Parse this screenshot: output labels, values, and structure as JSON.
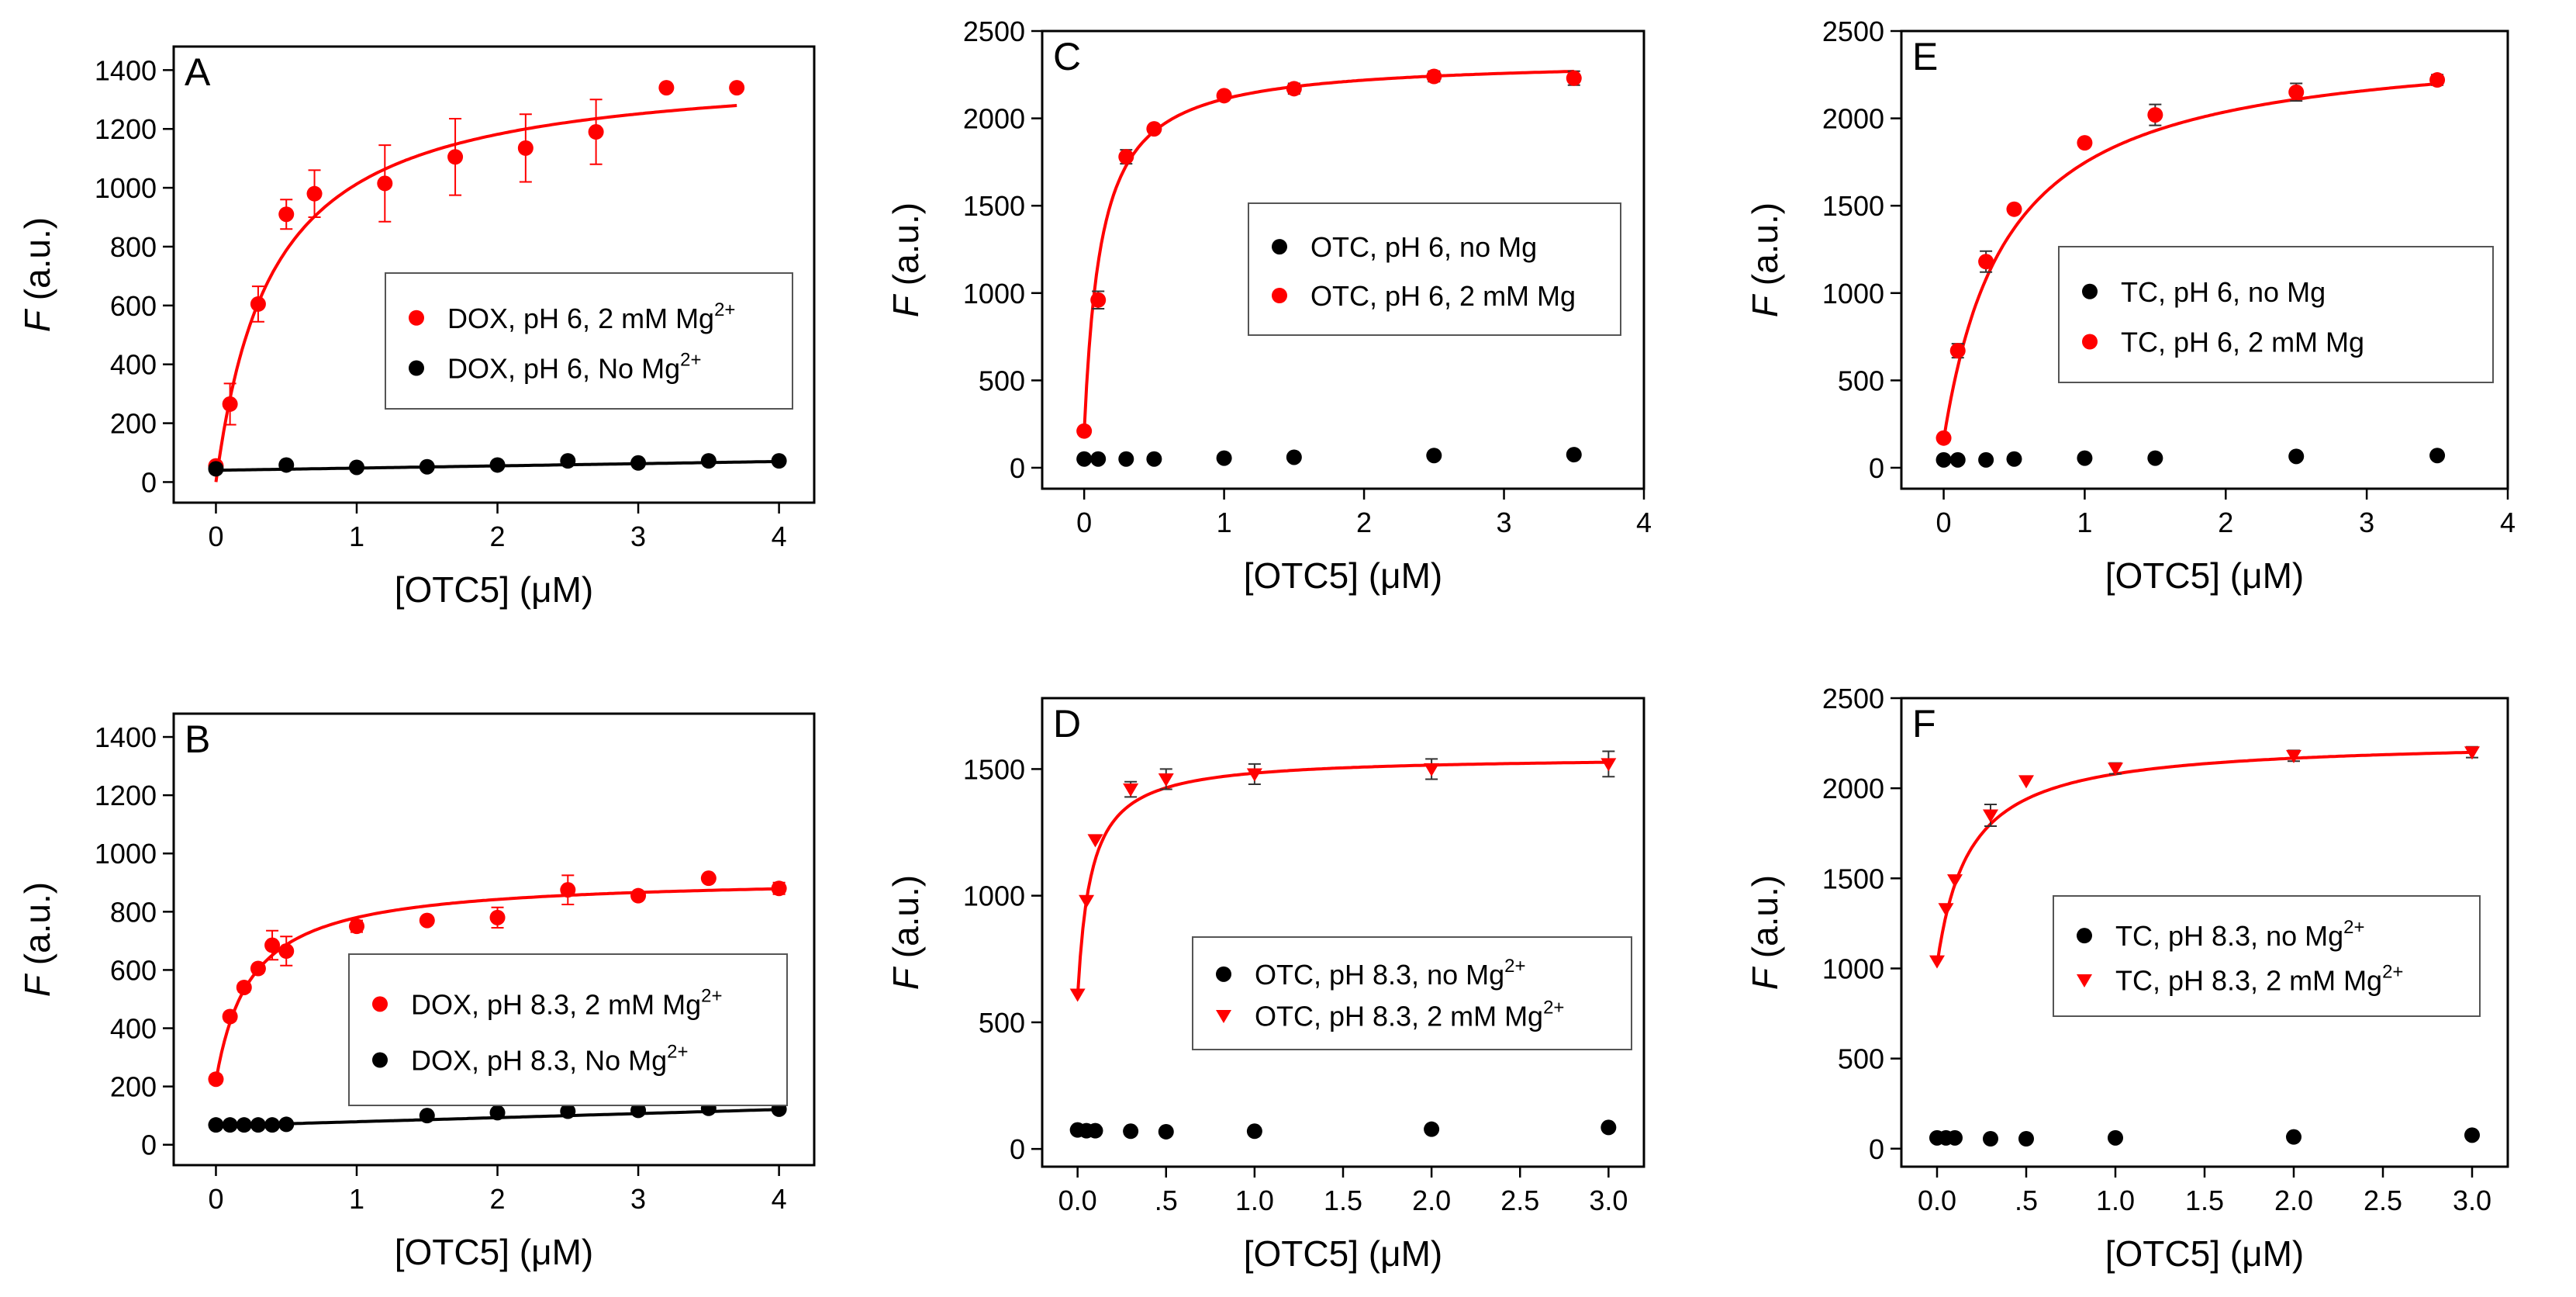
{
  "chart_data": [
    {
      "type": "scatter",
      "panel_label": "A",
      "xlabel": "[OTC5] (μM)",
      "ylabel_italic": "F",
      "ylabel_unit": " (a.u.)",
      "xlim": [
        -0.3,
        4.25
      ],
      "ylim": [
        -70,
        1480
      ],
      "xticks": [
        0,
        1,
        2,
        3,
        4
      ],
      "xtick_labels": [
        "0",
        "1",
        "2",
        "3",
        "4"
      ],
      "yticks": [
        0,
        200,
        400,
        600,
        800,
        1000,
        1200,
        1400
      ],
      "ytick_labels": [
        "0",
        "200",
        "400",
        "600",
        "800",
        "1000",
        "1200",
        "1400"
      ],
      "series": [
        {
          "name": "DOX, pH 6, 2 mM Mg",
          "name_sup": "2+",
          "color": "#ff0000",
          "marker": "circle",
          "x": [
            0,
            0.1,
            0.3,
            0.5,
            0.7,
            1.2,
            1.7,
            2.2,
            2.7,
            3.2,
            3.7
          ],
          "y": [
            55,
            265,
            605,
            910,
            980,
            1015,
            1105,
            1135,
            1190,
            1340,
            1340
          ],
          "err": [
            10,
            70,
            60,
            50,
            80,
            130,
            130,
            115,
            110,
            0,
            0
          ],
          "fit": {
            "kind": "hyperbolic",
            "base": 0,
            "amp": 1418,
            "kd": 0.4,
            "x_start": 0,
            "x_end": 3.7
          }
        },
        {
          "name": "DOX, pH 6, No Mg",
          "name_sup": "2+",
          "color": "#000000",
          "marker": "circle",
          "x": [
            0,
            0.5,
            1.0,
            1.5,
            2.0,
            2.5,
            3.0,
            3.5,
            4.0
          ],
          "y": [
            45,
            58,
            50,
            52,
            58,
            72,
            65,
            72,
            72
          ],
          "err": [
            0,
            0,
            0,
            0,
            0,
            0,
            0,
            0,
            0
          ],
          "fit": {
            "kind": "linear",
            "intercept": 40,
            "slope": 7.5,
            "x_start": 0,
            "x_end": 4
          }
        }
      ],
      "legend_order": [
        0,
        1
      ]
    },
    {
      "type": "scatter",
      "panel_label": "B",
      "xlabel": "[OTC5] (μM)",
      "ylabel_italic": "F",
      "ylabel_unit": " (a.u.)",
      "xlim": [
        -0.3,
        4.25
      ],
      "ylim": [
        -70,
        1480
      ],
      "xticks": [
        0,
        1,
        2,
        3,
        4
      ],
      "xtick_labels": [
        "0",
        "1",
        "2",
        "3",
        "4"
      ],
      "yticks": [
        0,
        200,
        400,
        600,
        800,
        1000,
        1200,
        1400
      ],
      "ytick_labels": [
        "0",
        "200",
        "400",
        "600",
        "800",
        "1000",
        "1200",
        "1400"
      ],
      "series": [
        {
          "name": "DOX, pH 8.3, 2 mM Mg",
          "name_sup": "2+",
          "color": "#ff0000",
          "marker": "circle",
          "x": [
            0,
            0.1,
            0.2,
            0.3,
            0.4,
            0.5,
            1.0,
            1.5,
            2.0,
            2.5,
            3.0,
            3.5,
            4.0
          ],
          "y": [
            225,
            440,
            540,
            605,
            685,
            665,
            750,
            770,
            780,
            875,
            855,
            915,
            880
          ],
          "err": [
            15,
            15,
            15,
            15,
            50,
            50,
            20,
            10,
            35,
            50,
            10,
            0,
            20
          ],
          "fit": {
            "kind": "hyperbolic",
            "base": 220,
            "amp": 700,
            "kd": 0.25,
            "x_start": 0,
            "x_end": 4
          }
        },
        {
          "name": "DOX, pH 8.3, No Mg",
          "name_sup": "2+",
          "color": "#000000",
          "marker": "circle",
          "x": [
            0,
            0.1,
            0.2,
            0.3,
            0.4,
            0.5,
            1.5,
            2.0,
            2.5,
            3.0,
            3.5,
            4.0
          ],
          "y": [
            68,
            68,
            68,
            68,
            68,
            70,
            100,
            110,
            115,
            118,
            125,
            122
          ],
          "err": [
            0,
            0,
            0,
            0,
            0,
            0,
            0,
            0,
            0,
            0,
            0,
            0
          ],
          "fit": {
            "kind": "linear",
            "intercept": 65,
            "slope": 14,
            "x_start": 0,
            "x_end": 4
          }
        }
      ],
      "legend_order": [
        0,
        1
      ]
    },
    {
      "type": "scatter",
      "panel_label": "C",
      "xlabel": "[OTC5] (μM)",
      "ylabel_italic": "F",
      "ylabel_unit": " (a.u.)",
      "xlim": [
        -0.3,
        4.0
      ],
      "ylim": [
        -120,
        2500
      ],
      "xticks": [
        0,
        1,
        2,
        3,
        4
      ],
      "xtick_labels": [
        "0",
        "1",
        "2",
        "3",
        "4"
      ],
      "yticks": [
        0,
        500,
        1000,
        1500,
        2000,
        2500
      ],
      "ytick_labels": [
        "0",
        "500",
        "1000",
        "1500",
        "2000",
        "2500"
      ],
      "series": [
        {
          "name": "OTC, pH 6, no Mg",
          "name_sup": "",
          "color": "#000000",
          "marker": "circle",
          "x": [
            0,
            0.1,
            0.3,
            0.5,
            1.0,
            1.5,
            2.5,
            3.5
          ],
          "y": [
            50,
            50,
            50,
            50,
            55,
            60,
            70,
            75
          ],
          "err": [
            0,
            0,
            0,
            0,
            0,
            0,
            0,
            0
          ],
          "fit": null
        },
        {
          "name": "OTC, pH 6, 2 mM Mg",
          "name_sup": "",
          "color": "#ff0000",
          "marker": "circle",
          "x": [
            0,
            0.1,
            0.3,
            0.5,
            1.0,
            1.5,
            2.5,
            3.5
          ],
          "y": [
            210,
            960,
            1780,
            1940,
            2130,
            2170,
            2240,
            2230
          ],
          "err": [
            0,
            50,
            40,
            20,
            20,
            30,
            30,
            40
          ],
          "fit": {
            "kind": "hyperbolic",
            "base": 200,
            "amp": 2140,
            "kd": 0.12,
            "x_start": 0,
            "x_end": 3.5
          }
        }
      ],
      "legend_order": [
        0,
        1
      ]
    },
    {
      "type": "scatter",
      "panel_label": "D",
      "xlabel": "[OTC5] (μM)",
      "ylabel_italic": "F",
      "ylabel_unit": " (a.u.)",
      "xlim": [
        -0.2,
        3.2
      ],
      "ylim": [
        -70,
        1780
      ],
      "xticks": [
        0,
        0.5,
        1.0,
        1.5,
        2.0,
        2.5,
        3.0
      ],
      "xtick_labels": [
        "0.0",
        ".5",
        "1.0",
        "1.5",
        "2.0",
        "2.5",
        "3.0"
      ],
      "yticks": [
        0,
        500,
        1000,
        1500
      ],
      "ytick_labels": [
        "0",
        "500",
        "1000",
        "1500"
      ],
      "series": [
        {
          "name": "OTC, pH 8.3, no Mg",
          "name_sup": "2+",
          "color": "#000000",
          "marker": "circle",
          "x": [
            0,
            0.05,
            0.1,
            0.3,
            0.5,
            1.0,
            2.0,
            3.0
          ],
          "y": [
            75,
            72,
            72,
            70,
            68,
            70,
            78,
            85
          ],
          "err": [
            0,
            0,
            0,
            0,
            0,
            0,
            0,
            0
          ],
          "fit": null
        },
        {
          "name": "OTC, pH 8.3, 2 mM Mg",
          "name_sup": "2+",
          "color": "#ff0000",
          "marker": "triangle-down",
          "x": [
            0,
            0.05,
            0.1,
            0.3,
            0.5,
            1.0,
            2.0,
            3.0
          ],
          "y": [
            610,
            980,
            1220,
            1420,
            1460,
            1480,
            1500,
            1520
          ],
          "err": [
            0,
            0,
            0,
            30,
            40,
            40,
            40,
            50
          ],
          "fit": {
            "kind": "hyperbolic",
            "base": 600,
            "amp": 950,
            "kd": 0.075,
            "x_start": 0,
            "x_end": 3.0
          }
        }
      ],
      "legend_order": [
        0,
        1
      ]
    },
    {
      "type": "scatter",
      "panel_label": "E",
      "xlabel": "[OTC5] (μM)",
      "ylabel_italic": "F",
      "ylabel_unit": " (a.u.)",
      "xlim": [
        -0.3,
        4.0
      ],
      "ylim": [
        -120,
        2500
      ],
      "xticks": [
        0,
        1,
        2,
        3,
        4
      ],
      "xtick_labels": [
        "0",
        "1",
        "2",
        "3",
        "4"
      ],
      "yticks": [
        0,
        500,
        1000,
        1500,
        2000,
        2500
      ],
      "ytick_labels": [
        "0",
        "500",
        "1000",
        "1500",
        "2000",
        "2500"
      ],
      "series": [
        {
          "name": "TC, pH 6, no Mg",
          "name_sup": "",
          "color": "#000000",
          "marker": "circle",
          "x": [
            0,
            0.1,
            0.3,
            0.5,
            1.0,
            1.5,
            2.5,
            3.5
          ],
          "y": [
            45,
            45,
            45,
            50,
            55,
            55,
            65,
            70
          ],
          "err": [
            0,
            0,
            0,
            0,
            0,
            0,
            0,
            0
          ],
          "fit": null
        },
        {
          "name": "TC, pH 6, 2 mM Mg",
          "name_sup": "",
          "color": "#ff0000",
          "marker": "circle",
          "x": [
            0,
            0.1,
            0.3,
            0.5,
            1.0,
            1.5,
            2.5,
            3.5
          ],
          "y": [
            170,
            670,
            1180,
            1480,
            1860,
            2020,
            2150,
            2220
          ],
          "err": [
            0,
            40,
            60,
            20,
            20,
            60,
            50,
            30
          ],
          "fit": {
            "kind": "hyperbolic",
            "base": 160,
            "amp": 2300,
            "kd": 0.45,
            "x_start": 0,
            "x_end": 3.5
          }
        }
      ],
      "legend_order": [
        0,
        1
      ]
    },
    {
      "type": "scatter",
      "panel_label": "F",
      "xlabel": "[OTC5] (μM)",
      "ylabel_italic": "F",
      "ylabel_unit": " (a.u.)",
      "xlim": [
        -0.2,
        3.2
      ],
      "ylim": [
        -100,
        2500
      ],
      "xticks": [
        0,
        0.5,
        1.0,
        1.5,
        2.0,
        2.5,
        3.0
      ],
      "xtick_labels": [
        "0.0",
        ".5",
        "1.0",
        "1.5",
        "2.0",
        "2.5",
        "3.0"
      ],
      "yticks": [
        0,
        500,
        1000,
        1500,
        2000,
        2500
      ],
      "ytick_labels": [
        "0",
        "500",
        "1000",
        "1500",
        "2000",
        "2500"
      ],
      "series": [
        {
          "name": "TC, pH 8.3, no Mg",
          "name_sup": "2+",
          "color": "#000000",
          "marker": "circle",
          "x": [
            0,
            0.05,
            0.1,
            0.3,
            0.5,
            1.0,
            2.0,
            3.0
          ],
          "y": [
            60,
            60,
            60,
            55,
            55,
            60,
            65,
            75
          ],
          "err": [
            0,
            0,
            0,
            0,
            0,
            0,
            0,
            0
          ],
          "fit": null
        },
        {
          "name": "TC, pH 8.3, 2 mM Mg",
          "name_sup": "2+",
          "color": "#ff0000",
          "marker": "triangle-down",
          "x": [
            0,
            0.05,
            0.1,
            0.3,
            0.5,
            1.0,
            2.0,
            3.0
          ],
          "y": [
            1040,
            1330,
            1490,
            1850,
            2040,
            2110,
            2180,
            2200
          ],
          "err": [
            0,
            0,
            0,
            60,
            0,
            30,
            30,
            30
          ],
          "fit": {
            "kind": "hyperbolic",
            "base": 1020,
            "amp": 1250,
            "kd": 0.18,
            "x_start": 0,
            "x_end": 3.0
          }
        }
      ],
      "legend_order": [
        0,
        1
      ]
    }
  ]
}
